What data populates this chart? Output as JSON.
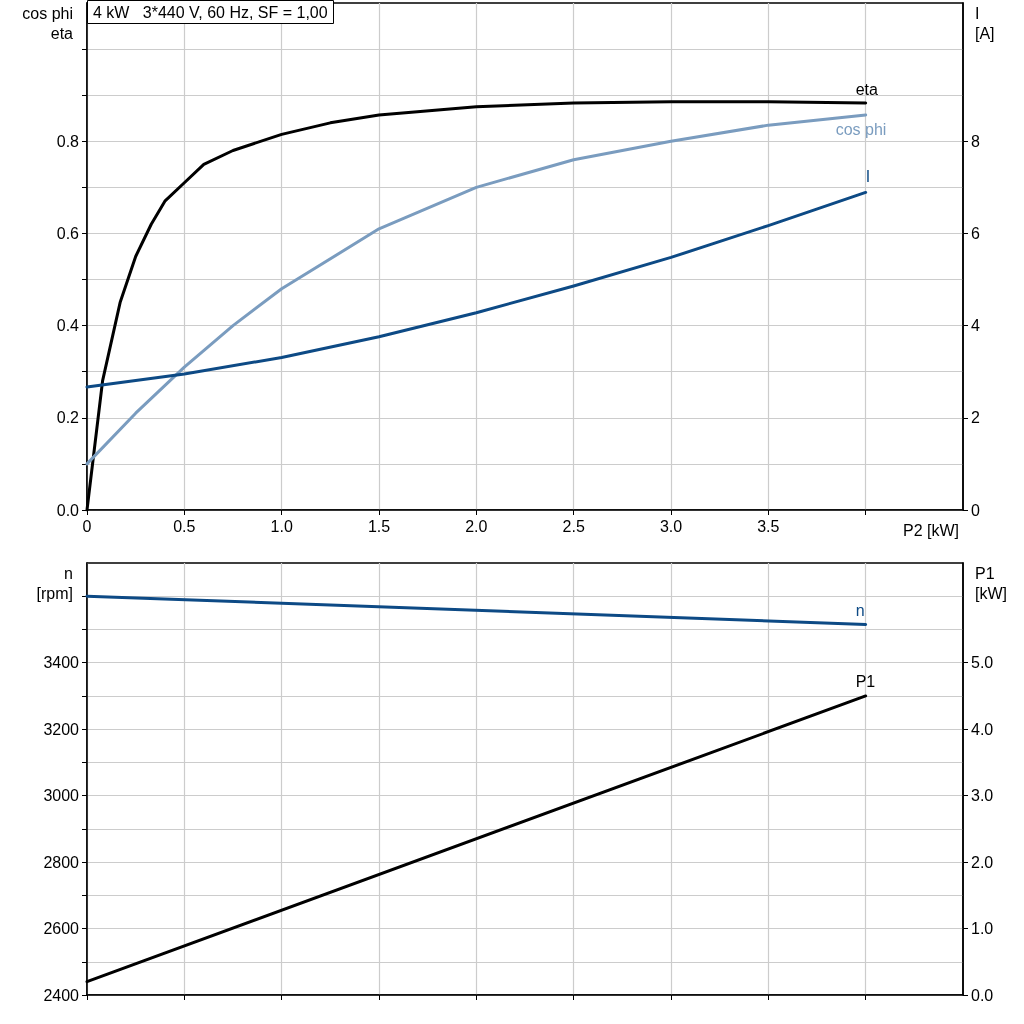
{
  "chart_data": [
    {
      "type": "line",
      "title": "4 kW   3*440 V, 60 Hz, SF = 1,00",
      "xlabel": "P2 [kW]",
      "ylabel": "cos phi\neta",
      "y2label": "I\n[A]",
      "series": [
        {
          "name": "eta",
          "color": "#000000",
          "x": [
            0,
            0.08,
            0.17,
            0.25,
            0.33,
            0.4,
            0.5,
            0.6,
            0.75,
            1.0,
            1.25,
            1.5,
            2.0,
            2.5,
            3.0,
            3.5,
            4.0
          ],
          "values": [
            0,
            0.28,
            0.45,
            0.55,
            0.62,
            0.67,
            0.71,
            0.75,
            0.78,
            0.815,
            0.84,
            0.857,
            0.875,
            0.883,
            0.886,
            0.886,
            0.883
          ]
        },
        {
          "name": "cos phi",
          "color": "#7a9cbf",
          "x": [
            0,
            0.25,
            0.5,
            0.75,
            1.0,
            1.5,
            2.0,
            2.5,
            3.0,
            3.5,
            4.0
          ],
          "values": [
            0.1,
            0.21,
            0.31,
            0.4,
            0.48,
            0.61,
            0.7,
            0.76,
            0.8,
            0.835,
            0.857
          ]
        },
        {
          "name": "I",
          "color": "#0d4a85",
          "axis": "y2",
          "x": [
            0,
            0.5,
            1.0,
            1.5,
            2.0,
            2.5,
            3.0,
            3.5,
            4.0
          ],
          "values": [
            2.67,
            2.95,
            3.31,
            3.76,
            4.28,
            4.86,
            5.48,
            6.17,
            6.89
          ]
        }
      ],
      "xlim": [
        0,
        4.5
      ],
      "xticks": [
        0,
        0.5,
        {
          "value": 1,
          "label": "1.0"
        },
        1.5,
        {
          "value": 2,
          "label": "2.0"
        },
        2.5,
        {
          "value": 3,
          "label": "3.0"
        },
        3.5,
        {
          "value": 4,
          "label": null
        }
      ],
      "ylim": [
        0,
        1.1
      ],
      "yticks": [
        {
          "value": 0,
          "label": "0.0"
        },
        {
          "value": 0.1,
          "label": null
        },
        0.2,
        {
          "value": 0.3,
          "label": null
        },
        0.4,
        {
          "value": 0.5,
          "label": null
        },
        0.6,
        {
          "value": 0.7,
          "label": null
        },
        0.8,
        {
          "value": 0.9,
          "label": null
        },
        {
          "value": 1.0,
          "label": null
        }
      ],
      "y2lim": [
        0,
        11
      ],
      "y2ticks": [
        0,
        2,
        4,
        6,
        8
      ],
      "grid": true,
      "marker": "none",
      "line_style": "solid"
    },
    {
      "type": "line",
      "ylabel": "n\n[rpm]",
      "y2label": "P1\n[kW]",
      "series": [
        {
          "name": "n",
          "color": "#0d4a85",
          "x": [
            0,
            4.0
          ],
          "values": [
            3600,
            3515
          ]
        },
        {
          "name": "P1",
          "color": "#000000",
          "axis": "y2",
          "x": [
            0,
            4.0
          ],
          "values": [
            0.2,
            4.5
          ]
        }
      ],
      "xlim": [
        0,
        4.5
      ],
      "xticks": [
        {
          "value": 0,
          "label": null
        },
        {
          "value": 0.5,
          "label": null
        },
        {
          "value": 1,
          "label": null
        },
        {
          "value": 1.5,
          "label": null
        },
        {
          "value": 2,
          "label": null
        },
        {
          "value": 2.5,
          "label": null
        },
        {
          "value": 3,
          "label": null
        },
        {
          "value": 3.5,
          "label": null
        },
        {
          "value": 4,
          "label": null
        }
      ],
      "ylim": [
        2400,
        3700
      ],
      "yticks": [
        2400,
        {
          "value": 2500,
          "label": null
        },
        2600,
        {
          "value": 2700,
          "label": null
        },
        2800,
        {
          "value": 2900,
          "label": null
        },
        3000,
        {
          "value": 3100,
          "label": null
        },
        3200,
        {
          "value": 3300,
          "label": null
        },
        3400,
        {
          "value": 3500,
          "label": null
        },
        {
          "value": 3600,
          "label": null
        }
      ],
      "y2lim": [
        0,
        6.5
      ],
      "y2ticks": [
        {
          "value": 0,
          "label": "0.0"
        },
        {
          "value": 1,
          "label": "1.0"
        },
        {
          "value": 2,
          "label": "2.0"
        },
        {
          "value": 3,
          "label": "3.0"
        },
        {
          "value": 4,
          "label": "4.0"
        },
        {
          "value": 5,
          "label": "5.0"
        }
      ],
      "tick_labels": "y",
      "grid": true,
      "marker": "none",
      "line_style": "solid"
    }
  ]
}
